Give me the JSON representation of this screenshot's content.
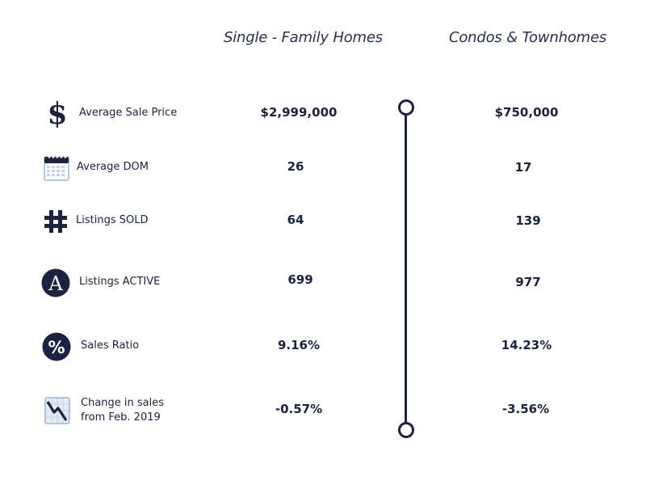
{
  "headers": {
    "single_family": "Single - Family Homes",
    "condos": "Condos & Townhomes"
  },
  "rows": [
    {
      "icon": "dollar-sign-icon",
      "label": "Average Sale Price",
      "single": "$2,999,000",
      "condo": "$750,000"
    },
    {
      "icon": "calendar-icon",
      "label": "Average DOM",
      "single": "26",
      "condo": "17"
    },
    {
      "icon": "hashtag-icon",
      "label": "Listings SOLD",
      "single": "64",
      "condo": "139"
    },
    {
      "icon": "letter-a-circle-icon",
      "label": "Listings ACTIVE",
      "single": "699",
      "condo": "977"
    },
    {
      "icon": "percent-circle-icon",
      "label": "Sales Ratio",
      "single": "9.16%",
      "condo": "14.23%"
    },
    {
      "icon": "declining-chart-icon",
      "label_line1": "Change in sales",
      "label_line2": "from Feb. 2019",
      "single": "-0.57%",
      "condo": "-3.56%"
    }
  ],
  "colors": {
    "navy": "#1b2340",
    "calendar_blue": "#9fb5d3"
  }
}
